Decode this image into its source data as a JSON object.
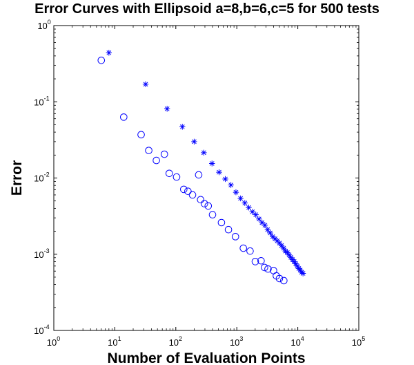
{
  "chart_data": {
    "type": "scatter",
    "title": "Error Curves with Ellipsoid a=8,b=6,c=5 for 500 tests",
    "xlabel": "Number of Evaluation Points",
    "ylabel": "Error",
    "x_scale": "log",
    "y_scale": "log",
    "xlim": [
      1,
      100000
    ],
    "ylim": [
      0.0001,
      1
    ],
    "x_ticks": [
      {
        "base": "10",
        "exp": "0",
        "value": 1
      },
      {
        "base": "10",
        "exp": "1",
        "value": 10
      },
      {
        "base": "10",
        "exp": "2",
        "value": 100
      },
      {
        "base": "10",
        "exp": "3",
        "value": 1000
      },
      {
        "base": "10",
        "exp": "4",
        "value": 10000
      },
      {
        "base": "10",
        "exp": "5",
        "value": 100000
      }
    ],
    "y_ticks": [
      {
        "base": "10",
        "exp": "0",
        "value": 1
      },
      {
        "base": "10",
        "exp": "-1",
        "value": 0.1
      },
      {
        "base": "10",
        "exp": "-2",
        "value": 0.01
      },
      {
        "base": "10",
        "exp": "-3",
        "value": 0.001
      },
      {
        "base": "10",
        "exp": "-4",
        "value": 0.0001
      }
    ],
    "grid": false,
    "color": "#0000ff",
    "series": [
      {
        "marker": "circle",
        "points": [
          [
            6,
            0.35
          ],
          [
            14,
            0.063
          ],
          [
            27,
            0.037
          ],
          [
            36,
            0.023
          ],
          [
            48,
            0.017
          ],
          [
            65,
            0.0205
          ],
          [
            78,
            0.0115
          ],
          [
            103,
            0.0103
          ],
          [
            135,
            0.0071
          ],
          [
            158,
            0.0067
          ],
          [
            188,
            0.006
          ],
          [
            237,
            0.011
          ],
          [
            255,
            0.0052
          ],
          [
            295,
            0.0046
          ],
          [
            340,
            0.0043
          ],
          [
            400,
            0.0033
          ],
          [
            560,
            0.0026
          ],
          [
            730,
            0.0021
          ],
          [
            950,
            0.0017
          ],
          [
            1280,
            0.0012
          ],
          [
            1650,
            0.0011
          ],
          [
            2010,
            0.0008
          ],
          [
            2500,
            0.00082
          ],
          [
            2850,
            0.00067
          ],
          [
            3250,
            0.00064
          ],
          [
            4000,
            0.00061
          ],
          [
            4450,
            0.00052
          ],
          [
            5000,
            0.00048
          ],
          [
            5900,
            0.00045
          ]
        ]
      },
      {
        "marker": "asterisk",
        "points": [
          [
            8,
            0.44
          ],
          [
            32,
            0.17
          ],
          [
            72,
            0.081
          ],
          [
            128,
            0.047
          ],
          [
            200,
            0.03
          ],
          [
            288,
            0.0215
          ],
          [
            392,
            0.0155
          ],
          [
            512,
            0.0119
          ],
          [
            648,
            0.0097
          ],
          [
            800,
            0.0081
          ],
          [
            968,
            0.0065
          ],
          [
            1152,
            0.0054
          ],
          [
            1352,
            0.0047
          ],
          [
            1568,
            0.0041
          ],
          [
            1800,
            0.0036
          ],
          [
            2048,
            0.0033
          ],
          [
            2312,
            0.0029
          ],
          [
            2592,
            0.0026
          ],
          [
            2888,
            0.0024
          ],
          [
            3200,
            0.0021
          ],
          [
            3528,
            0.0019
          ],
          [
            3872,
            0.0017
          ],
          [
            4232,
            0.0016
          ],
          [
            4608,
            0.0015
          ],
          [
            5000,
            0.0014
          ],
          [
            5408,
            0.0013
          ],
          [
            5832,
            0.0012
          ],
          [
            6272,
            0.0011
          ],
          [
            6728,
            0.00105
          ],
          [
            7200,
            0.00098
          ],
          [
            7688,
            0.00091
          ],
          [
            8192,
            0.00085
          ],
          [
            8712,
            0.0008
          ],
          [
            9248,
            0.00075
          ],
          [
            9800,
            0.0007
          ],
          [
            10368,
            0.00065
          ],
          [
            10952,
            0.00062
          ],
          [
            11552,
            0.00058
          ],
          [
            12168,
            0.00056
          ]
        ]
      }
    ]
  }
}
